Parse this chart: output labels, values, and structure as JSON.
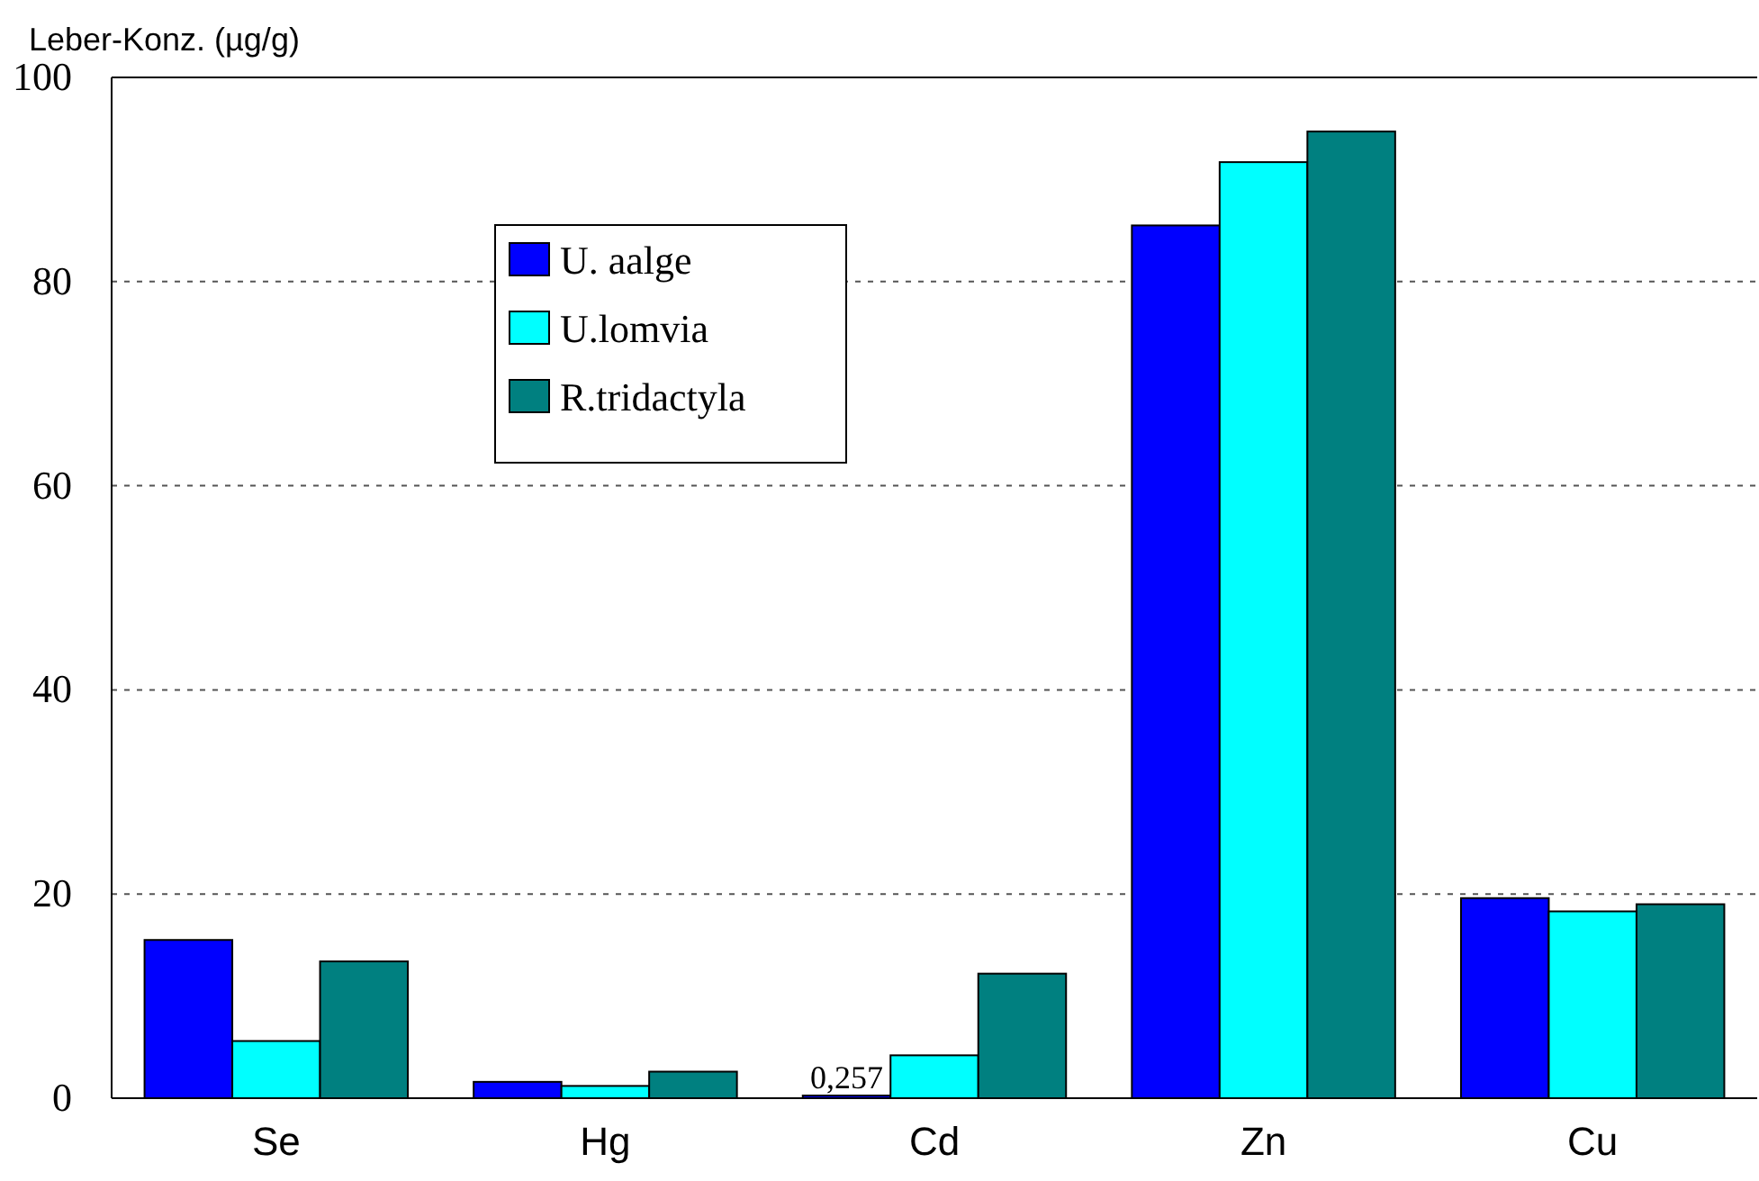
{
  "chart_data": {
    "type": "bar",
    "ylabel": "Leber-Konz. (µg/g)",
    "categories": [
      "Se",
      "Hg",
      "Cd",
      "Zn",
      "Cu"
    ],
    "series": [
      {
        "name": "U. aalge",
        "color": "#0000ff",
        "values": [
          15.5,
          1.6,
          0.257,
          85.5,
          19.6
        ],
        "value_labels": [
          null,
          null,
          "0,257",
          null,
          null
        ]
      },
      {
        "name": "U.lomvia",
        "color": "#00ffff",
        "values": [
          5.6,
          1.2,
          4.2,
          91.7,
          18.3
        ]
      },
      {
        "name": "R.tridactyla",
        "color": "#008080",
        "values": [
          13.4,
          2.6,
          12.2,
          94.7,
          19.0
        ]
      }
    ],
    "ylim": [
      0,
      100
    ],
    "yticks": [
      0,
      20,
      40,
      60,
      80,
      100
    ],
    "grid": "y",
    "legend": "top left"
  }
}
